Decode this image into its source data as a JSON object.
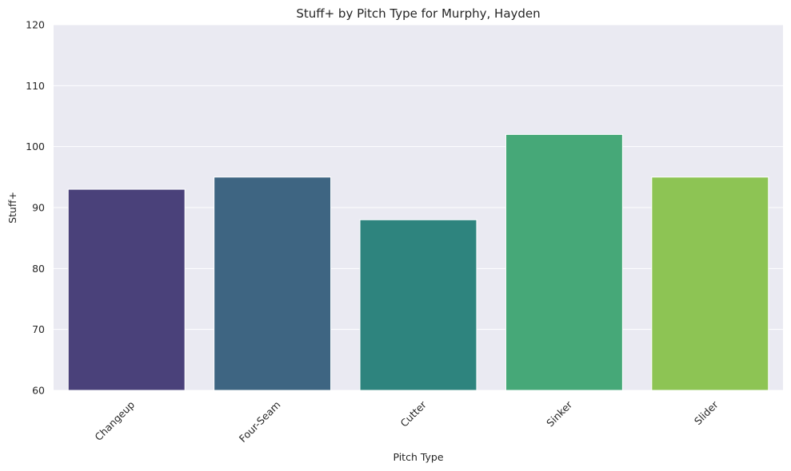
{
  "chart_data": {
    "type": "bar",
    "title": "Stuff+ by Pitch Type for Murphy, Hayden",
    "xlabel": "Pitch Type",
    "ylabel": "Stuff+",
    "categories": [
      "Changeup",
      "Four-Seam",
      "Cutter",
      "Sinker",
      "Slider"
    ],
    "values": [
      93,
      95,
      88,
      102,
      95
    ],
    "ylim": [
      60,
      120
    ],
    "yticks": [
      60,
      70,
      80,
      90,
      100,
      110,
      120
    ],
    "colors": [
      "#4a417a",
      "#3e6582",
      "#2e847e",
      "#46a878",
      "#8dc454"
    ],
    "grid": true,
    "background": "#eaeaf2"
  }
}
